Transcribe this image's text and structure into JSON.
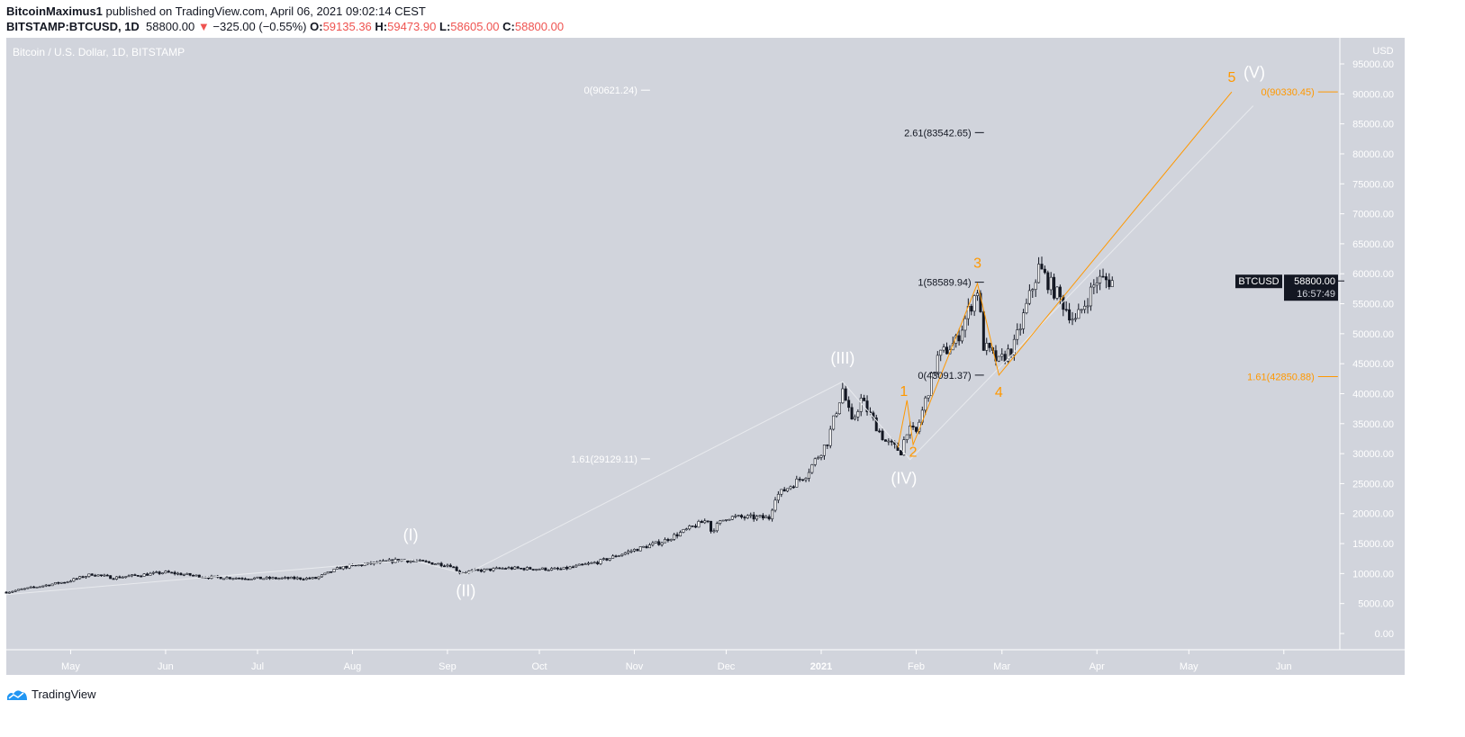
{
  "header": {
    "author": "BitcoinMaximus1",
    "published": "published on TradingView.com, April 06, 2021 09:02:14 CEST",
    "symbol": "BITSTAMP:BTCUSD, 1D",
    "last": "58800.00",
    "change": "−325.00 (−0.55%)",
    "o_label": "O:",
    "o": "59135.36",
    "h_label": "H:",
    "h": "59473.90",
    "l_label": "L:",
    "l": "58605.00",
    "c_label": "C:",
    "c": "58800.00"
  },
  "footer": {
    "brand": "TradingView"
  },
  "chart_data": {
    "type": "candlestick",
    "title": "Bitcoin / U.S. Dollar, 1D, BITSTAMP",
    "currency": "USD",
    "ylim": [
      -2500,
      100000
    ],
    "y_ticks": [
      0,
      5000,
      10000,
      15000,
      20000,
      25000,
      30000,
      35000,
      40000,
      45000,
      50000,
      55000,
      60000,
      65000,
      70000,
      75000,
      80000,
      85000,
      90000,
      95000
    ],
    "y_tick_labels": [
      "0.00",
      "5000.00",
      "10000.00",
      "15000.00",
      "20000.00",
      "25000.00",
      "30000.00",
      "35000.00",
      "40000.00",
      "45000.00",
      "50000.00",
      "55000.00",
      "60000.00",
      "65000.00",
      "70000.00",
      "75000.00",
      "80000.00",
      "85000.00",
      "90000.00",
      "95000.00"
    ],
    "x_range": [
      "2020-04-10",
      "2021-06-14"
    ],
    "x_ticks": [
      {
        "date": "2020-05-01",
        "label": "May"
      },
      {
        "date": "2020-06-01",
        "label": "Jun"
      },
      {
        "date": "2020-07-01",
        "label": "Jul"
      },
      {
        "date": "2020-08-01",
        "label": "Aug"
      },
      {
        "date": "2020-09-01",
        "label": "Sep"
      },
      {
        "date": "2020-10-01",
        "label": "Oct"
      },
      {
        "date": "2020-11-01",
        "label": "Nov"
      },
      {
        "date": "2020-12-01",
        "label": "Dec"
      },
      {
        "date": "2021-01-01",
        "label": "2021"
      },
      {
        "date": "2021-02-01",
        "label": "Feb"
      },
      {
        "date": "2021-03-01",
        "label": "Mar"
      },
      {
        "date": "2021-04-01",
        "label": "Apr"
      },
      {
        "date": "2021-05-01",
        "label": "May"
      },
      {
        "date": "2021-06-01",
        "label": "Jun"
      }
    ],
    "price_path": [
      [
        "2020-04-10",
        6900
      ],
      [
        "2020-04-30",
        8700
      ],
      [
        "2020-05-08",
        9900
      ],
      [
        "2020-05-15",
        9300
      ],
      [
        "2020-06-01",
        10200
      ],
      [
        "2020-06-15",
        9400
      ],
      [
        "2020-07-01",
        9200
      ],
      [
        "2020-07-20",
        9200
      ],
      [
        "2020-07-28",
        11000
      ],
      [
        "2020-08-17",
        12300
      ],
      [
        "2020-09-02",
        11400
      ],
      [
        "2020-09-05",
        10200
      ],
      [
        "2020-09-20",
        10900
      ],
      [
        "2020-10-08",
        10700
      ],
      [
        "2020-10-20",
        11900
      ],
      [
        "2020-10-31",
        13800
      ],
      [
        "2020-11-10",
        15300
      ],
      [
        "2020-11-25",
        19000
      ],
      [
        "2020-11-26",
        17100
      ],
      [
        "2020-12-01",
        19400
      ],
      [
        "2020-12-15",
        19300
      ],
      [
        "2020-12-17",
        22800
      ],
      [
        "2020-12-27",
        26500
      ],
      [
        "2021-01-03",
        32000
      ],
      [
        "2021-01-08",
        40800
      ],
      [
        "2021-01-11",
        35000
      ],
      [
        "2021-01-14",
        39000
      ],
      [
        "2021-01-22",
        32000
      ],
      [
        "2021-01-27",
        30400
      ],
      [
        "2021-01-29",
        34000
      ],
      [
        "2021-02-01",
        33500
      ],
      [
        "2021-02-08",
        46000
      ],
      [
        "2021-02-14",
        48700
      ],
      [
        "2021-02-21",
        57500
      ],
      [
        "2021-02-23",
        48000
      ],
      [
        "2021-02-28",
        45200
      ],
      [
        "2021-03-05",
        48000
      ],
      [
        "2021-03-13",
        61000
      ],
      [
        "2021-03-17",
        58000
      ],
      [
        "2021-03-25",
        52000
      ],
      [
        "2021-04-01",
        59000
      ],
      [
        "2021-04-06",
        58800
      ]
    ],
    "last_price": {
      "symbol": "BTCUSD",
      "value": "58800.00",
      "countdown": "16:57:49",
      "price": 58800
    },
    "wave_labels": [
      {
        "text": "(I)",
        "date": "2020-08-20",
        "price": 15500,
        "color": "#ffffff"
      },
      {
        "text": "(II)",
        "date": "2020-09-07",
        "price": 6200,
        "color": "#ffffff"
      },
      {
        "text": "(III)",
        "date": "2021-01-08",
        "price": 45000,
        "color": "#ffffff"
      },
      {
        "text": "(IV)",
        "date": "2021-01-28",
        "price": 25000,
        "color": "#ffffff"
      },
      {
        "text": "(V)",
        "date": "2021-05-20",
        "price": 90000,
        "color": "#ffffff"
      },
      {
        "text": "1",
        "date": "2021-01-28",
        "price": 41000,
        "color": "#ff9800"
      },
      {
        "text": "2",
        "date": "2021-01-31",
        "price": 29500,
        "color": "#ff9800"
      },
      {
        "text": "3",
        "date": "2021-02-21",
        "price": 61000,
        "color": "#ff9800"
      },
      {
        "text": "4",
        "date": "2021-02-28",
        "price": 39500,
        "color": "#ff9800"
      },
      {
        "text": "5",
        "date": "2021-05-15",
        "price": 92000,
        "color": "#ff9800"
      }
    ],
    "fib_labels": [
      {
        "text": "0(90621.24)",
        "price": 90621.24,
        "date": "2020-11-02",
        "color": "#ffffff"
      },
      {
        "text": "2.61(83542.65)",
        "price": 83542.65,
        "date": "2021-02-19",
        "color": "#131722"
      },
      {
        "text": "1(58589.94)",
        "price": 58589.94,
        "date": "2021-02-19",
        "color": "#131722"
      },
      {
        "text": "0(43091.37)",
        "price": 43091.37,
        "date": "2021-02-19",
        "color": "#131722"
      },
      {
        "text": "1.61(29129.11)",
        "price": 29129.11,
        "date": "2020-11-02",
        "color": "#ffffff"
      },
      {
        "text": "0(90330.45)",
        "price": 90330.45,
        "date": "2021-06-11",
        "color": "#ff9800"
      },
      {
        "text": "1.61(42850.88)",
        "price": 42850.88,
        "date": "2021-06-11",
        "color": "#ff9800"
      }
    ],
    "orange_wave": [
      [
        "2021-01-26",
        31000
      ],
      [
        "2021-01-29",
        38900
      ],
      [
        "2021-01-31",
        31500
      ],
      [
        "2021-02-21",
        58400
      ],
      [
        "2021-02-28",
        43100
      ],
      [
        "2021-05-15",
        90330
      ]
    ],
    "white_wave": [
      [
        "2020-04-10",
        6500
      ],
      [
        "2020-08-20",
        12300
      ],
      [
        "2020-09-07",
        9900
      ],
      [
        "2021-01-08",
        42000
      ],
      [
        "2021-01-30",
        29000
      ],
      [
        "2021-05-22",
        88000
      ]
    ],
    "colors": {
      "background": "#d1d4dc",
      "up": "#ffffff",
      "down": "#131722",
      "wick": "#131722",
      "orange": "#ff9800",
      "axis_text": "#ffffff"
    }
  }
}
